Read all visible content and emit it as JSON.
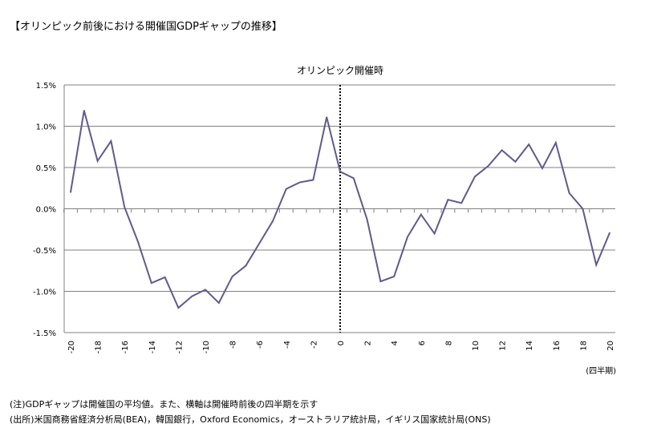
{
  "title": "【オリンピック前後における開催国GDPギャップの推移】",
  "notes": [
    "(注)GDPギャップは開催国の平均値。また、横軸は開催時前後の四半期を示す",
    "(出所)米国商務省経済分析局(BEA)，韓国銀行，Oxford Economics，オーストラリア統計局，イギリス国家統計局(ONS)"
  ],
  "chart_data": {
    "type": "line",
    "title": "【オリンピック前後における開催国GDPギャップの推移】",
    "xlabel": "(四半期)",
    "ylabel": "",
    "annotation": "オリンピック開催時",
    "annotation_x": 0,
    "ylim": [
      -1.5,
      1.5
    ],
    "xlim": [
      -20,
      20
    ],
    "yticks": [
      1.5,
      1.0,
      0.5,
      0.0,
      -0.5,
      -1.0,
      -1.5
    ],
    "ytick_labels": [
      "1.5%",
      "1.0%",
      "0.5%",
      "0.0%",
      "-0.5%",
      "-1.0%",
      "-1.5%"
    ],
    "xtick_labels": [
      "-20",
      "-18",
      "-16",
      "-14",
      "-12",
      "-10",
      "-8",
      "-6",
      "-4",
      "-2",
      "0",
      "2",
      "4",
      "6",
      "8",
      "10",
      "12",
      "14",
      "16",
      "18",
      "20"
    ],
    "grid": true,
    "line_color": "#5f5a8c",
    "x": [
      -20,
      -19,
      -18,
      -17,
      -16,
      -15,
      -14,
      -13,
      -12,
      -11,
      -10,
      -9,
      -8,
      -7,
      -6,
      -5,
      -4,
      -3,
      -2,
      -1,
      0,
      1,
      2,
      3,
      4,
      5,
      6,
      7,
      8,
      9,
      10,
      11,
      12,
      13,
      14,
      15,
      16,
      17,
      18,
      19,
      20
    ],
    "values": [
      0.2,
      1.19,
      0.58,
      0.82,
      0.02,
      -0.4,
      -0.9,
      -0.83,
      -1.2,
      -1.06,
      -0.98,
      -1.14,
      -0.82,
      -0.69,
      -0.42,
      -0.15,
      0.24,
      0.32,
      0.35,
      1.11,
      0.45,
      0.37,
      -0.13,
      -0.88,
      -0.82,
      -0.34,
      -0.07,
      -0.3,
      0.11,
      0.07,
      0.39,
      0.52,
      0.71,
      0.57,
      0.78,
      0.49,
      0.8,
      0.19,
      0.0,
      -0.68,
      -0.29
    ]
  }
}
